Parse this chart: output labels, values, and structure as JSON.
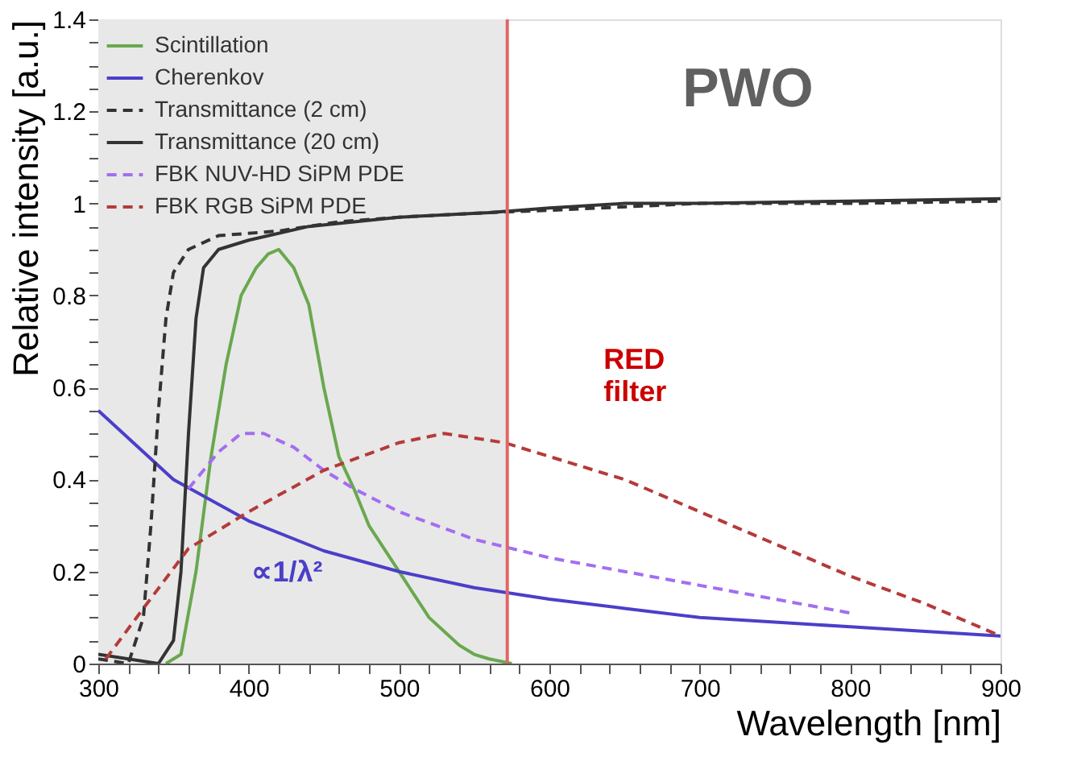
{
  "chart_data": {
    "type": "line",
    "xlabel": "Wavelength [nm]",
    "ylabel": "Relative intensity [a.u.]",
    "xlim": [
      300,
      900
    ],
    "ylim": [
      0,
      1.4
    ],
    "xticks": [
      300,
      {
        "value": 320,
        "label": null
      },
      {
        "value": 340,
        "label": null
      },
      {
        "value": 360,
        "label": null
      },
      {
        "value": 380,
        "label": null
      },
      400,
      {
        "value": 420,
        "label": null
      },
      {
        "value": 440,
        "label": null
      },
      {
        "value": 460,
        "label": null
      },
      {
        "value": 480,
        "label": null
      },
      500,
      {
        "value": 520,
        "label": null
      },
      {
        "value": 540,
        "label": null
      },
      {
        "value": 560,
        "label": null
      },
      {
        "value": 580,
        "label": null
      },
      600,
      {
        "value": 620,
        "label": null
      },
      {
        "value": 640,
        "label": null
      },
      {
        "value": 660,
        "label": null
      },
      {
        "value": 680,
        "label": null
      },
      700,
      {
        "value": 720,
        "label": null
      },
      {
        "value": 740,
        "label": null
      },
      {
        "value": 760,
        "label": null
      },
      {
        "value": 780,
        "label": null
      },
      800,
      {
        "value": 820,
        "label": null
      },
      {
        "value": 840,
        "label": null
      },
      {
        "value": 860,
        "label": null
      },
      {
        "value": 880,
        "label": null
      },
      900
    ],
    "yticks": [
      0,
      {
        "value": 0.05,
        "label": null
      },
      {
        "value": 0.1,
        "label": null
      },
      {
        "value": 0.15,
        "label": null
      },
      0.2,
      {
        "value": 0.25,
        "label": null
      },
      {
        "value": 0.3,
        "label": null
      },
      {
        "value": 0.35,
        "label": null
      },
      0.4,
      {
        "value": 0.45,
        "label": null
      },
      {
        "value": 0.5,
        "label": null
      },
      {
        "value": 0.55,
        "label": null
      },
      0.6,
      {
        "value": 0.65,
        "label": null
      },
      {
        "value": 0.7,
        "label": null
      },
      {
        "value": 0.75,
        "label": null
      },
      0.8,
      {
        "value": 0.85,
        "label": null
      },
      {
        "value": 0.9,
        "label": null
      },
      {
        "value": 0.95,
        "label": null
      },
      1,
      {
        "value": 1.05,
        "label": null
      },
      {
        "value": 1.1,
        "label": null
      },
      {
        "value": 1.15,
        "label": null
      },
      1.2,
      {
        "value": 1.25,
        "label": null
      },
      {
        "value": 1.3,
        "label": null
      },
      {
        "value": 1.35,
        "label": null
      },
      1.4
    ],
    "grid": false,
    "legend": "top left",
    "marker": "none",
    "series": [
      {
        "name": "Scintillation",
        "color": "#6aa84f",
        "line_style": "solid",
        "x": [
          345,
          355,
          365,
          375,
          385,
          395,
          405,
          413,
          420,
          430,
          440,
          450,
          460,
          470,
          480,
          490,
          500,
          510,
          520,
          530,
          540,
          550,
          560,
          575
        ],
        "values": [
          0,
          0.02,
          0.2,
          0.45,
          0.65,
          0.8,
          0.86,
          0.89,
          0.9,
          0.86,
          0.78,
          0.6,
          0.45,
          0.38,
          0.3,
          0.25,
          0.2,
          0.15,
          0.1,
          0.07,
          0.04,
          0.02,
          0.01,
          0
        ]
      },
      {
        "name": "Cherenkov",
        "color": "#4b3fc9",
        "line_style": "solid",
        "x": [
          300,
          350,
          400,
          450,
          500,
          550,
          600,
          650,
          700,
          750,
          800,
          850,
          900
        ],
        "values": [
          0.55,
          0.4,
          0.31,
          0.245,
          0.2,
          0.165,
          0.14,
          0.12,
          0.1,
          0.09,
          0.08,
          0.07,
          0.06
        ]
      },
      {
        "name": "Transmittance (2 cm)",
        "color": "#333333",
        "line_style": "dashed",
        "x": [
          300,
          320,
          330,
          335,
          340,
          345,
          350,
          360,
          380,
          420,
          460,
          500,
          560,
          600,
          700,
          800,
          900
        ],
        "values": [
          0.01,
          0,
          0.1,
          0.3,
          0.55,
          0.75,
          0.85,
          0.9,
          0.93,
          0.94,
          0.96,
          0.97,
          0.98,
          0.985,
          1,
          1,
          1.005
        ]
      },
      {
        "name": "Transmittance (20 cm)",
        "color": "#333333",
        "line_style": "solid",
        "x": [
          300,
          340,
          350,
          355,
          360,
          365,
          370,
          380,
          400,
          440,
          500,
          560,
          600,
          650,
          700,
          800,
          900
        ],
        "values": [
          0.02,
          0,
          0.05,
          0.2,
          0.5,
          0.75,
          0.86,
          0.9,
          0.92,
          0.95,
          0.97,
          0.98,
          0.99,
          1,
          1,
          1.005,
          1.01
        ]
      },
      {
        "name": "FBK NUV-HD SiPM PDE",
        "color": "#a36ef0",
        "line_style": "dashed",
        "x": [
          360,
          380,
          395,
          410,
          430,
          450,
          470,
          500,
          550,
          600,
          650,
          700,
          750,
          800
        ],
        "values": [
          0.38,
          0.46,
          0.5,
          0.5,
          0.47,
          0.42,
          0.38,
          0.33,
          0.27,
          0.23,
          0.2,
          0.17,
          0.14,
          0.11
        ]
      },
      {
        "name": "FBK RGB SiPM PDE",
        "color": "#b53a3a",
        "line_style": "dashed",
        "x": [
          305,
          330,
          360,
          400,
          450,
          500,
          530,
          570,
          600,
          650,
          700,
          750,
          800,
          850,
          900
        ],
        "values": [
          0.01,
          0.12,
          0.25,
          0.33,
          0.42,
          0.48,
          0.5,
          0.48,
          0.45,
          0.4,
          0.33,
          0.26,
          0.19,
          0.13,
          0.06
        ]
      }
    ],
    "bands": [
      {
        "axis": "x",
        "from": 300,
        "to": 572,
        "color": "#e8e8e8"
      }
    ],
    "ref_lines": [
      {
        "axis": "x",
        "value": 572,
        "color": "#e06666",
        "line_style": "solid"
      }
    ],
    "annotations": [
      "PWO",
      "RED filter",
      "∝1/λ²"
    ]
  }
}
